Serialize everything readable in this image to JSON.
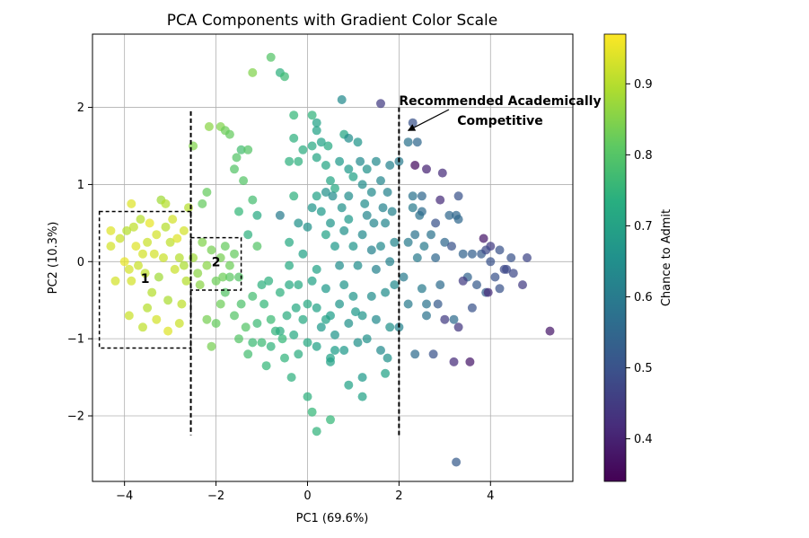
{
  "chart_data": {
    "type": "scatter",
    "title": "PCA Components with Gradient Color Scale",
    "xlabel": "PC1 (69.6%)",
    "ylabel": "PC2 (10.3%)",
    "xlim": [
      -4.7,
      5.8
    ],
    "ylim": [
      -2.85,
      2.95
    ],
    "xticks": [
      -4,
      -2,
      0,
      2,
      4
    ],
    "yticks": [
      -2,
      -1,
      0,
      1,
      2
    ],
    "xtick_labels": [
      "−4",
      "−2",
      "0",
      "2",
      "4"
    ],
    "ytick_labels": [
      "−2",
      "−1",
      "0",
      "1",
      "2"
    ],
    "grid": true,
    "colorbar": {
      "label": "Chance to Admit",
      "min": 0.34,
      "max": 0.97,
      "ticks": [
        0.4,
        0.5,
        0.6,
        0.7,
        0.8,
        0.9
      ],
      "tick_labels": [
        "0.4",
        "0.5",
        "0.6",
        "0.7",
        "0.8",
        "0.9"
      ],
      "colormap": "viridis"
    },
    "vlines": [
      {
        "x": -2.55,
        "y": [
          -2.25,
          1.95
        ]
      },
      {
        "x": 2.0,
        "y": [
          -2.25,
          2.0
        ]
      }
    ],
    "boxes": [
      {
        "label": "1",
        "x": [
          -4.55,
          -2.55
        ],
        "y": [
          -1.12,
          0.65
        ],
        "label_at": [
          -3.55,
          -0.22
        ]
      },
      {
        "label": "2",
        "x": [
          -2.55,
          -1.45
        ],
        "y": [
          -0.37,
          0.31
        ],
        "label_at": [
          -2.0,
          0.0
        ]
      }
    ],
    "annotation": {
      "line1": "Recommended Academically",
      "line2": "Competitive",
      "text_at": [
        4.2,
        1.92
      ],
      "arrow_to": [
        2.2,
        1.7
      ]
    },
    "points": [
      [
        -4.3,
        0.4,
        0.94
      ],
      [
        -4.3,
        0.2,
        0.93
      ],
      [
        -4.2,
        -0.25,
        0.93
      ],
      [
        -4.1,
        0.3,
        0.92
      ],
      [
        -4.0,
        0.0,
        0.95
      ],
      [
        -3.95,
        0.4,
        0.9
      ],
      [
        -3.9,
        -0.1,
        0.93
      ],
      [
        -3.85,
        -0.25,
        0.93
      ],
      [
        -3.8,
        0.45,
        0.91
      ],
      [
        -3.75,
        0.2,
        0.94
      ],
      [
        -3.7,
        -0.05,
        0.92
      ],
      [
        -3.65,
        0.55,
        0.9
      ],
      [
        -3.6,
        0.1,
        0.93
      ],
      [
        -3.55,
        -0.15,
        0.91
      ],
      [
        -3.5,
        0.25,
        0.92
      ],
      [
        -3.45,
        0.5,
        0.95
      ],
      [
        -3.4,
        -0.4,
        0.9
      ],
      [
        -3.35,
        0.1,
        0.93
      ],
      [
        -3.3,
        0.35,
        0.93
      ],
      [
        -3.25,
        -0.2,
        0.88
      ],
      [
        -3.2,
        0.8,
        0.88
      ],
      [
        -3.15,
        0.05,
        0.92
      ],
      [
        -3.1,
        0.45,
        0.9
      ],
      [
        -3.05,
        -0.5,
        0.89
      ],
      [
        -3.0,
        0.25,
        0.91
      ],
      [
        -2.95,
        0.55,
        0.93
      ],
      [
        -2.9,
        -0.1,
        0.92
      ],
      [
        -2.85,
        0.3,
        0.94
      ],
      [
        -2.8,
        0.05,
        0.9
      ],
      [
        -2.75,
        -0.55,
        0.91
      ],
      [
        -2.7,
        0.4,
        0.93
      ],
      [
        -2.65,
        -0.25,
        0.9
      ],
      [
        -3.9,
        -0.7,
        0.92
      ],
      [
        -3.6,
        -0.85,
        0.91
      ],
      [
        -3.3,
        -0.75,
        0.93
      ],
      [
        -3.05,
        -0.9,
        0.94
      ],
      [
        -2.8,
        -0.8,
        0.92
      ],
      [
        -3.85,
        0.75,
        0.94
      ],
      [
        -3.1,
        0.75,
        0.9
      ],
      [
        -2.6,
        0.7,
        0.9
      ],
      [
        -3.5,
        -0.6,
        0.9
      ],
      [
        -2.7,
        -0.05,
        0.89
      ],
      [
        -2.5,
        0.05,
        0.88
      ],
      [
        -2.4,
        -0.15,
        0.86
      ],
      [
        -2.3,
        0.25,
        0.85
      ],
      [
        -2.2,
        -0.05,
        0.86
      ],
      [
        -2.1,
        0.15,
        0.84
      ],
      [
        -2.0,
        -0.25,
        0.83
      ],
      [
        -1.9,
        0.05,
        0.84
      ],
      [
        -1.8,
        0.2,
        0.82
      ],
      [
        -1.7,
        -0.05,
        0.83
      ],
      [
        -1.6,
        0.1,
        0.82
      ],
      [
        -1.5,
        -0.2,
        0.8
      ],
      [
        -2.35,
        -0.3,
        0.86
      ],
      [
        -1.85,
        -0.2,
        0.83
      ],
      [
        -2.5,
        1.5,
        0.85
      ],
      [
        -2.3,
        0.75,
        0.82
      ],
      [
        -2.2,
        0.9,
        0.82
      ],
      [
        -2.15,
        1.75,
        0.86
      ],
      [
        -1.9,
        1.75,
        0.85
      ],
      [
        -1.8,
        1.7,
        0.83
      ],
      [
        -1.7,
        1.65,
        0.82
      ],
      [
        -1.55,
        1.35,
        0.8
      ],
      [
        -1.45,
        1.45,
        0.78
      ],
      [
        -1.4,
        1.05,
        0.8
      ],
      [
        -1.3,
        1.45,
        0.8
      ],
      [
        -1.2,
        0.8,
        0.78
      ],
      [
        -1.1,
        0.6,
        0.72
      ],
      [
        -1.5,
        0.65,
        0.76
      ],
      [
        -1.3,
        0.35,
        0.74
      ],
      [
        -1.6,
        1.2,
        0.8
      ],
      [
        -1.1,
        0.2,
        0.8
      ],
      [
        -2.2,
        -0.75,
        0.84
      ],
      [
        -2.0,
        -0.8,
        0.82
      ],
      [
        -2.1,
        -1.1,
        0.84
      ],
      [
        -1.9,
        -0.55,
        0.83
      ],
      [
        -1.8,
        -0.4,
        0.8
      ],
      [
        -1.7,
        -0.2,
        0.81
      ],
      [
        -1.6,
        -0.7,
        0.8
      ],
      [
        -1.5,
        -1.0,
        0.8
      ],
      [
        -1.45,
        -0.55,
        0.79
      ],
      [
        -1.35,
        -0.85,
        0.8
      ],
      [
        -1.3,
        -1.2,
        0.78
      ],
      [
        -1.2,
        -0.45,
        0.78
      ],
      [
        -1.1,
        -0.8,
        0.77
      ],
      [
        -1.0,
        -1.05,
        0.77
      ],
      [
        -0.95,
        -0.55,
        0.76
      ],
      [
        -0.9,
        -1.35,
        0.76
      ],
      [
        -0.85,
        -0.25,
        0.74
      ],
      [
        -0.8,
        -0.75,
        0.77
      ],
      [
        -0.7,
        -0.9,
        0.75
      ],
      [
        -0.6,
        -0.4,
        0.74
      ],
      [
        -0.55,
        -1.0,
        0.76
      ],
      [
        -0.5,
        -1.25,
        0.75
      ],
      [
        -0.45,
        -0.7,
        0.73
      ],
      [
        -0.4,
        -0.3,
        0.72
      ],
      [
        -0.35,
        -1.5,
        0.74
      ],
      [
        -0.3,
        -0.95,
        0.72
      ],
      [
        -0.25,
        -0.6,
        0.72
      ],
      [
        -0.2,
        -1.2,
        0.73
      ],
      [
        -1.2,
        -1.05,
        0.77
      ],
      [
        -1.0,
        -0.3,
        0.74
      ],
      [
        -0.8,
        -1.1,
        0.75
      ],
      [
        -0.6,
        -0.9,
        0.73
      ],
      [
        -1.2,
        2.45,
        0.85
      ],
      [
        -0.8,
        2.65,
        0.8
      ],
      [
        -0.6,
        2.45,
        0.74
      ],
      [
        -0.5,
        2.4,
        0.77
      ],
      [
        -0.3,
        1.9,
        0.76
      ],
      [
        -0.3,
        1.6,
        0.74
      ],
      [
        -0.2,
        1.3,
        0.74
      ],
      [
        -0.1,
        1.45,
        0.73
      ],
      [
        0.1,
        1.9,
        0.75
      ],
      [
        0.1,
        1.5,
        0.72
      ],
      [
        0.2,
        1.8,
        0.7
      ],
      [
        0.3,
        1.55,
        0.7
      ],
      [
        0.4,
        1.25,
        0.71
      ],
      [
        0.5,
        1.05,
        0.71
      ],
      [
        0.6,
        0.95,
        0.72
      ],
      [
        0.7,
        1.3,
        0.68
      ],
      [
        0.8,
        1.65,
        0.71
      ],
      [
        0.9,
        1.6,
        0.65
      ],
      [
        1.0,
        1.1,
        0.7
      ],
      [
        1.1,
        1.55,
        0.67
      ],
      [
        1.2,
        1.0,
        0.65
      ],
      [
        1.3,
        1.2,
        0.66
      ],
      [
        1.4,
        0.9,
        0.64
      ],
      [
        1.5,
        1.3,
        0.64
      ],
      [
        1.6,
        1.05,
        0.63
      ],
      [
        1.8,
        1.25,
        0.62
      ],
      [
        1.75,
        0.9,
        0.62
      ],
      [
        1.6,
        2.05,
        0.45
      ],
      [
        0.75,
        2.1,
        0.64
      ],
      [
        0.2,
        1.7,
        0.7
      ],
      [
        0.4,
        0.9,
        0.66
      ],
      [
        0.9,
        1.2,
        0.68
      ],
      [
        1.15,
        1.3,
        0.64
      ],
      [
        0.45,
        1.5,
        0.72
      ],
      [
        0.2,
        1.35,
        0.71
      ],
      [
        -0.4,
        1.3,
        0.74
      ],
      [
        -0.3,
        0.85,
        0.74
      ],
      [
        -0.6,
        0.6,
        0.6
      ],
      [
        -0.2,
        0.5,
        0.66
      ],
      [
        0.0,
        0.45,
        0.66
      ],
      [
        0.1,
        0.7,
        0.67
      ],
      [
        0.2,
        0.85,
        0.7
      ],
      [
        0.4,
        0.35,
        0.7
      ],
      [
        0.5,
        0.5,
        0.67
      ],
      [
        0.6,
        0.2,
        0.68
      ],
      [
        0.7,
        -0.05,
        0.65
      ],
      [
        0.8,
        0.4,
        0.66
      ],
      [
        0.9,
        0.55,
        0.68
      ],
      [
        1.0,
        0.2,
        0.67
      ],
      [
        1.1,
        -0.05,
        0.65
      ],
      [
        1.2,
        0.35,
        0.64
      ],
      [
        1.3,
        0.6,
        0.63
      ],
      [
        1.4,
        0.15,
        0.62
      ],
      [
        1.5,
        -0.1,
        0.62
      ],
      [
        1.6,
        0.2,
        0.64
      ],
      [
        1.7,
        0.5,
        0.63
      ],
      [
        1.8,
        0.0,
        0.62
      ],
      [
        1.9,
        0.25,
        0.63
      ],
      [
        -0.4,
        0.25,
        0.72
      ],
      [
        -0.1,
        0.1,
        0.7
      ],
      [
        0.2,
        -0.1,
        0.7
      ],
      [
        0.3,
        0.65,
        0.68
      ],
      [
        0.55,
        0.85,
        0.65
      ],
      [
        0.75,
        0.7,
        0.66
      ],
      [
        1.25,
        0.75,
        0.65
      ],
      [
        1.45,
        0.5,
        0.63
      ],
      [
        1.65,
        0.7,
        0.62
      ],
      [
        1.85,
        0.65,
        0.62
      ],
      [
        0.9,
        0.85,
        0.65
      ],
      [
        -0.4,
        -0.05,
        0.72
      ],
      [
        -0.2,
        -0.3,
        0.72
      ],
      [
        0.0,
        -0.55,
        0.72
      ],
      [
        0.1,
        -0.25,
        0.7
      ],
      [
        0.2,
        -0.6,
        0.7
      ],
      [
        0.3,
        -0.85,
        0.68
      ],
      [
        0.4,
        -0.35,
        0.68
      ],
      [
        0.5,
        -0.7,
        0.69
      ],
      [
        0.6,
        -0.95,
        0.67
      ],
      [
        0.7,
        -0.55,
        0.67
      ],
      [
        0.8,
        -0.3,
        0.67
      ],
      [
        0.9,
        -0.8,
        0.66
      ],
      [
        1.0,
        -0.45,
        0.67
      ],
      [
        1.1,
        -1.05,
        0.66
      ],
      [
        1.2,
        -0.7,
        0.67
      ],
      [
        1.3,
        -1.0,
        0.66
      ],
      [
        1.4,
        -0.45,
        0.65
      ],
      [
        1.5,
        -0.75,
        0.64
      ],
      [
        1.6,
        -1.15,
        0.64
      ],
      [
        1.7,
        -0.4,
        0.65
      ],
      [
        1.8,
        -0.85,
        0.66
      ],
      [
        1.9,
        -0.3,
        0.64
      ],
      [
        0.0,
        -1.05,
        0.72
      ],
      [
        0.2,
        -1.1,
        0.7
      ],
      [
        0.5,
        -1.25,
        0.7
      ],
      [
        0.8,
        -1.15,
        0.68
      ],
      [
        0.4,
        -0.75,
        0.7
      ],
      [
        -0.1,
        -0.75,
        0.72
      ],
      [
        1.05,
        -0.65,
        0.68
      ],
      [
        1.75,
        -1.25,
        0.66
      ],
      [
        0.0,
        -1.75,
        0.74
      ],
      [
        0.1,
        -1.95,
        0.76
      ],
      [
        0.2,
        -2.2,
        0.75
      ],
      [
        0.5,
        -2.05,
        0.76
      ],
      [
        0.9,
        -1.6,
        0.7
      ],
      [
        1.2,
        -1.5,
        0.68
      ],
      [
        1.2,
        -1.75,
        0.7
      ],
      [
        1.7,
        -1.45,
        0.7
      ],
      [
        0.5,
        -1.3,
        0.7
      ],
      [
        0.6,
        -1.15,
        0.69
      ],
      [
        2.0,
        -0.85,
        0.62
      ],
      [
        2.1,
        -0.2,
        0.6
      ],
      [
        2.2,
        0.25,
        0.6
      ],
      [
        2.2,
        -0.55,
        0.6
      ],
      [
        2.3,
        0.7,
        0.6
      ],
      [
        2.35,
        0.35,
        0.58
      ],
      [
        2.4,
        0.05,
        0.6
      ],
      [
        2.45,
        0.6,
        0.58
      ],
      [
        2.5,
        -0.35,
        0.6
      ],
      [
        2.55,
        0.2,
        0.6
      ],
      [
        2.6,
        -0.55,
        0.58
      ],
      [
        2.7,
        0.35,
        0.58
      ],
      [
        2.8,
        0.05,
        0.55
      ],
      [
        2.9,
        -0.3,
        0.56
      ],
      [
        3.0,
        0.25,
        0.55
      ],
      [
        3.1,
        0.6,
        0.55
      ],
      [
        3.2,
        -0.75,
        0.56
      ],
      [
        3.3,
        0.55,
        0.55
      ],
      [
        3.4,
        0.1,
        0.54
      ],
      [
        3.5,
        -0.2,
        0.54
      ],
      [
        3.6,
        0.1,
        0.53
      ],
      [
        3.7,
        -0.3,
        0.52
      ],
      [
        3.8,
        0.1,
        0.52
      ],
      [
        3.9,
        -0.4,
        0.53
      ],
      [
        4.0,
        0.0,
        0.5
      ],
      [
        4.1,
        -0.2,
        0.5
      ],
      [
        4.2,
        0.15,
        0.5
      ],
      [
        4.3,
        -0.1,
        0.48
      ],
      [
        4.5,
        -0.15,
        0.48
      ],
      [
        4.7,
        -0.3,
        0.45
      ],
      [
        4.8,
        0.05,
        0.47
      ],
      [
        2.35,
        1.25,
        0.36
      ],
      [
        2.6,
        1.2,
        0.4
      ],
      [
        2.9,
        0.8,
        0.42
      ],
      [
        3.3,
        -0.85,
        0.44
      ],
      [
        3.4,
        -0.25,
        0.45
      ],
      [
        3.85,
        0.3,
        0.38
      ],
      [
        3.95,
        -0.4,
        0.42
      ],
      [
        2.3,
        1.8,
        0.5
      ],
      [
        2.4,
        1.55,
        0.55
      ],
      [
        2.2,
        1.55,
        0.58
      ],
      [
        2.3,
        0.85,
        0.58
      ],
      [
        2.5,
        0.65,
        0.56
      ],
      [
        2.8,
        0.5,
        0.5
      ],
      [
        3.25,
        0.6,
        0.55
      ],
      [
        3.2,
        -1.3,
        0.42
      ],
      [
        3.55,
        -1.3,
        0.38
      ],
      [
        3.0,
        -0.75,
        0.45
      ],
      [
        2.75,
        -1.2,
        0.5
      ],
      [
        2.35,
        -1.2,
        0.56
      ],
      [
        3.25,
        -2.6,
        0.52
      ],
      [
        2.6,
        -0.7,
        0.58
      ],
      [
        2.85,
        -0.55,
        0.52
      ],
      [
        3.15,
        0.2,
        0.5
      ],
      [
        3.6,
        -0.6,
        0.5
      ],
      [
        4.35,
        -0.1,
        0.48
      ],
      [
        4.0,
        0.2,
        0.45
      ],
      [
        5.3,
        -0.9,
        0.38
      ],
      [
        4.45,
        0.05,
        0.5
      ],
      [
        2.0,
        1.3,
        0.6
      ],
      [
        2.5,
        0.85,
        0.55
      ],
      [
        2.95,
        1.15,
        0.42
      ],
      [
        3.3,
        0.85,
        0.5
      ],
      [
        3.9,
        0.15,
        0.48
      ],
      [
        4.2,
        -0.35,
        0.5
      ]
    ]
  }
}
